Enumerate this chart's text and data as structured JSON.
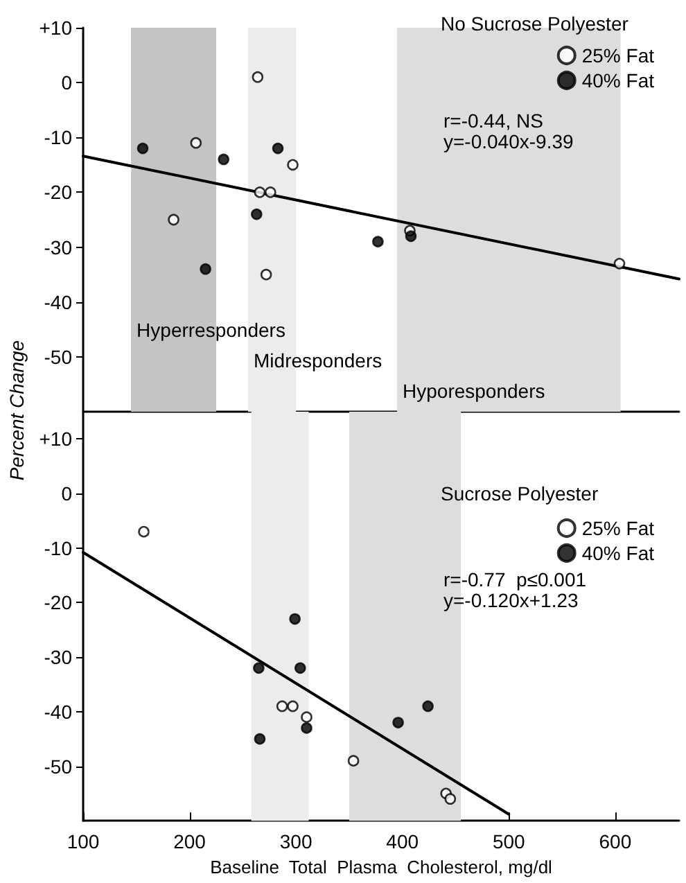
{
  "chart_data": [
    {
      "type": "scatter",
      "ylabel": "Percent Change",
      "legend_title": "No Sucrose Polyester",
      "legend": "top right",
      "marker": "circle",
      "grid": false,
      "tick_labels": "y",
      "xlim": [
        100,
        660
      ],
      "ylim": [
        -60,
        10
      ],
      "yticks": [
        {
          "value": 10,
          "label": "+10"
        },
        0,
        -10,
        -20,
        -30,
        -40,
        -50
      ],
      "series": [
        {
          "name": "25% Fat",
          "color": "#000000",
          "x": [
            264,
            206,
            297,
            266,
            276,
            272,
            185,
            407,
            604
          ],
          "values": [
            1,
            -11,
            -15,
            -20,
            -20,
            -35,
            -25,
            -27,
            -33
          ]
        },
        {
          "name": "40% Fat",
          "color": "#000000",
          "x": [
            156,
            283,
            232,
            263,
            215,
            377,
            408
          ],
          "values": [
            -12,
            -12,
            -14,
            -24,
            -34,
            -29,
            -28
          ]
        },
        {
          "type": "line",
          "color": "#000000",
          "marker": "none",
          "x": [
            100,
            660
          ],
          "values": [
            -13.4,
            -35.8
          ]
        }
      ],
      "annotations": [
        "r=-0.44, NS",
        "y=-0.040x-9.39"
      ],
      "bands": [
        {
          "axis": "x",
          "from": 395,
          "to": 605,
          "label": "Hyporesponders",
          "color": "#dddddd"
        },
        {
          "axis": "x",
          "from": 255,
          "to": 300,
          "label": "Midresponders",
          "color": "#ececec"
        },
        {
          "axis": "x",
          "from": 145,
          "to": 225,
          "label": "Hyperresponders",
          "color": "#c4c4c4"
        }
      ]
    },
    {
      "type": "scatter",
      "xlabel": "Baseline  Total  Plasma  Cholesterol, mg/dl",
      "legend_title": "Sucrose Polyester",
      "legend": "top right",
      "marker": "circle",
      "grid": false,
      "xlim": [
        100,
        660
      ],
      "xticks": [
        100,
        200,
        300,
        400,
        500,
        600
      ],
      "ylim": [
        -60,
        15
      ],
      "yticks": [
        {
          "value": 10,
          "label": "+10"
        },
        0,
        -10,
        -20,
        -30,
        -40,
        -50
      ],
      "series": [
        {
          "name": "25% Fat",
          "color": "#000000",
          "x": [
            157,
            287,
            297,
            310,
            354,
            441,
            445
          ],
          "values": [
            -7,
            -39,
            -39,
            -41,
            -49,
            -55,
            -56
          ]
        },
        {
          "name": "40% Fat",
          "color": "#000000",
          "x": [
            265,
            299,
            304,
            266,
            310,
            396,
            424
          ],
          "values": [
            -32,
            -23,
            -32,
            -45,
            -43,
            -42,
            -39
          ]
        },
        {
          "type": "line",
          "color": "#000000",
          "marker": "none",
          "x": [
            100,
            500
          ],
          "values": [
            -10.8,
            -58.8
          ]
        }
      ],
      "annotations": [
        "r=-0.77  p≤0.001",
        "y=-0.120x+1.23"
      ],
      "bands": [
        {
          "axis": "x",
          "from": 350,
          "to": 455,
          "color": "#dddddd"
        },
        {
          "axis": "x",
          "from": 258,
          "to": 312,
          "color": "#ececec"
        }
      ]
    }
  ]
}
